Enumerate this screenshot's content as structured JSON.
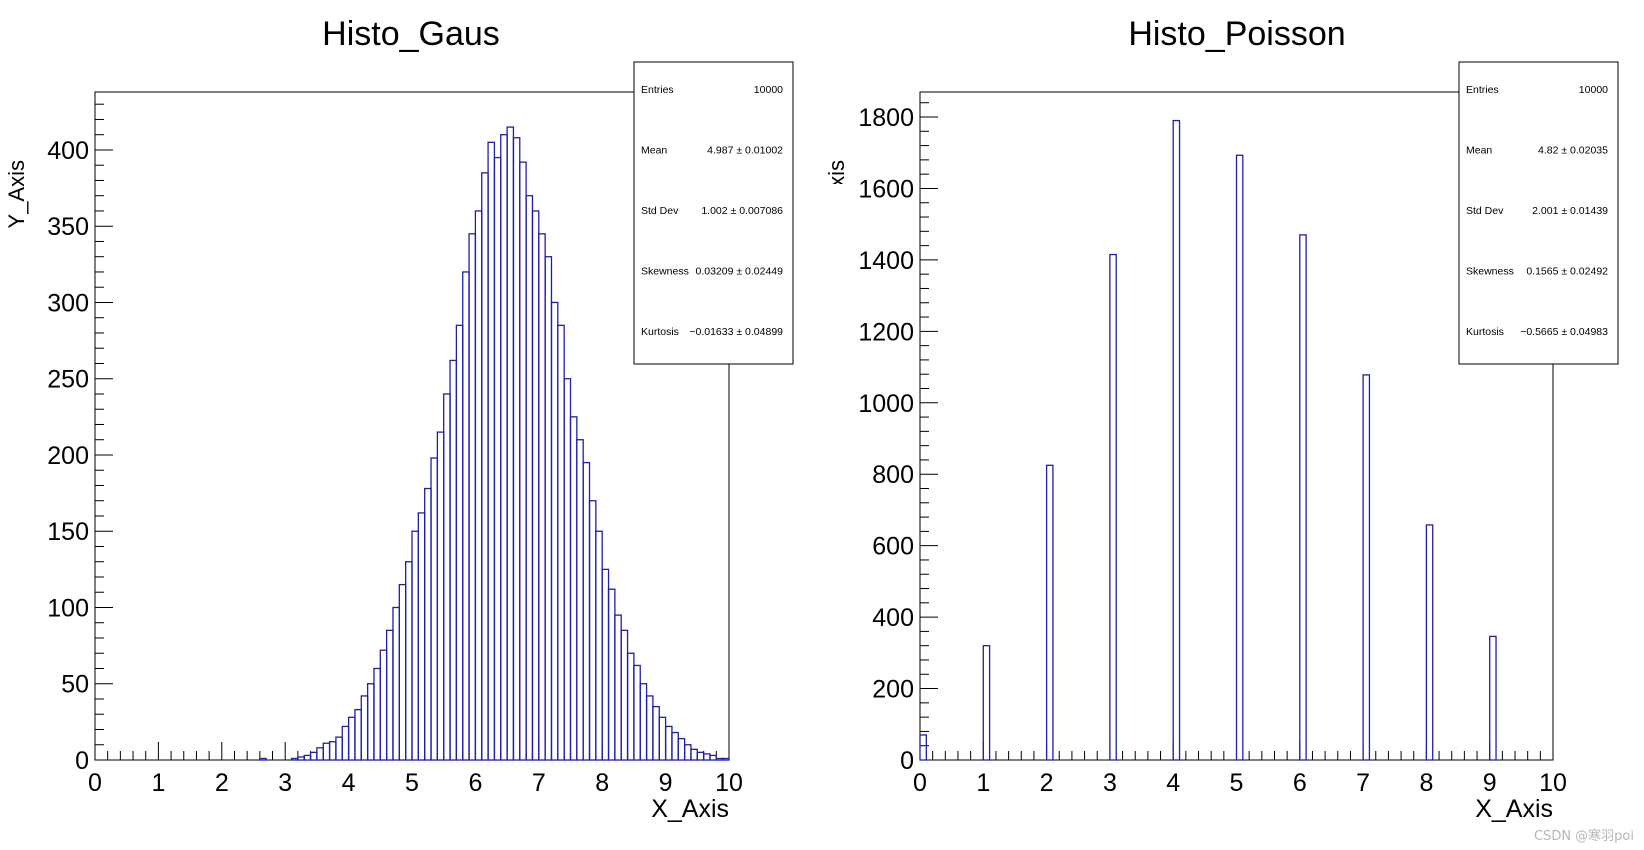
{
  "watermark": "CSDN @寒羽poi",
  "colors": {
    "line": "#1f1fa8",
    "axis": "#000000",
    "background": "#ffffff"
  },
  "chart_data": [
    {
      "type": "bar",
      "histogram_style": "step",
      "title": "Histo_Gaus",
      "xlabel": "X_Axis",
      "ylabel": "Y_Axis",
      "xlim": [
        0,
        10
      ],
      "ylim": [
        0,
        438
      ],
      "bin_width": 0.1,
      "x_ticks": [
        "0",
        "1",
        "2",
        "3",
        "4",
        "5",
        "6",
        "7",
        "8",
        "9",
        "10"
      ],
      "y_ticks": [
        "0",
        "50",
        "100",
        "150",
        "200",
        "250",
        "300",
        "350",
        "400"
      ],
      "values": [
        0,
        0,
        0,
        0,
        0,
        0,
        0,
        0,
        0,
        0,
        0,
        0,
        0,
        0,
        0,
        0,
        0,
        0,
        0,
        0,
        0,
        0,
        0,
        0,
        0,
        0,
        1,
        0,
        0,
        0,
        0,
        1,
        2,
        3,
        5,
        8,
        11,
        12,
        15,
        22,
        28,
        33,
        42,
        50,
        60,
        72,
        85,
        100,
        115,
        130,
        150,
        162,
        178,
        198,
        215,
        240,
        262,
        285,
        320,
        345,
        360,
        385,
        405,
        395,
        410,
        415,
        408,
        392,
        370,
        360,
        345,
        330,
        300,
        285,
        250,
        225,
        210,
        195,
        170,
        150,
        125,
        112,
        95,
        85,
        70,
        62,
        50,
        42,
        35,
        28,
        22,
        18,
        14,
        10,
        7,
        5,
        4,
        3,
        1,
        1
      ],
      "stats": [
        {
          "label": "Entries",
          "value": "10000"
        },
        {
          "label": "Mean",
          "value": "4.987 ± 0.01002"
        },
        {
          "label": "Std Dev",
          "value": "1.002 ± 0.007086"
        },
        {
          "label": "Skewness",
          "value": "0.03209 ± 0.02449"
        },
        {
          "label": "Kurtosis",
          "value": "−0.01633 ± 0.04899"
        }
      ]
    },
    {
      "type": "bar",
      "histogram_style": "step",
      "title": "Histo_Poisson",
      "xlabel": "X_Axis",
      "ylabel": "Y_Axis",
      "xlim": [
        0,
        10
      ],
      "ylim": [
        0,
        1870
      ],
      "bin_width": 0.1,
      "x_ticks": [
        "0",
        "1",
        "2",
        "3",
        "4",
        "5",
        "6",
        "7",
        "8",
        "9",
        "10"
      ],
      "y_ticks": [
        "0",
        "200",
        "400",
        "600",
        "800",
        "1000",
        "1200",
        "1400",
        "1600",
        "1800"
      ],
      "spikes": [
        {
          "x": 0,
          "value": 70
        },
        {
          "x": 1,
          "value": 320
        },
        {
          "x": 2,
          "value": 825
        },
        {
          "x": 3,
          "value": 1415
        },
        {
          "x": 4,
          "value": 1790
        },
        {
          "x": 5,
          "value": 1693
        },
        {
          "x": 6,
          "value": 1470
        },
        {
          "x": 7,
          "value": 1078
        },
        {
          "x": 8,
          "value": 658
        },
        {
          "x": 9,
          "value": 346
        }
      ],
      "stats": [
        {
          "label": "Entries",
          "value": "10000"
        },
        {
          "label": "Mean",
          "value": "4.82 ± 0.02035"
        },
        {
          "label": "Std Dev",
          "value": "2.001 ± 0.01439"
        },
        {
          "label": "Skewness",
          "value": "0.1565 ± 0.02492"
        },
        {
          "label": "Kurtosis",
          "value": "−0.5665 ± 0.04983"
        }
      ]
    }
  ]
}
